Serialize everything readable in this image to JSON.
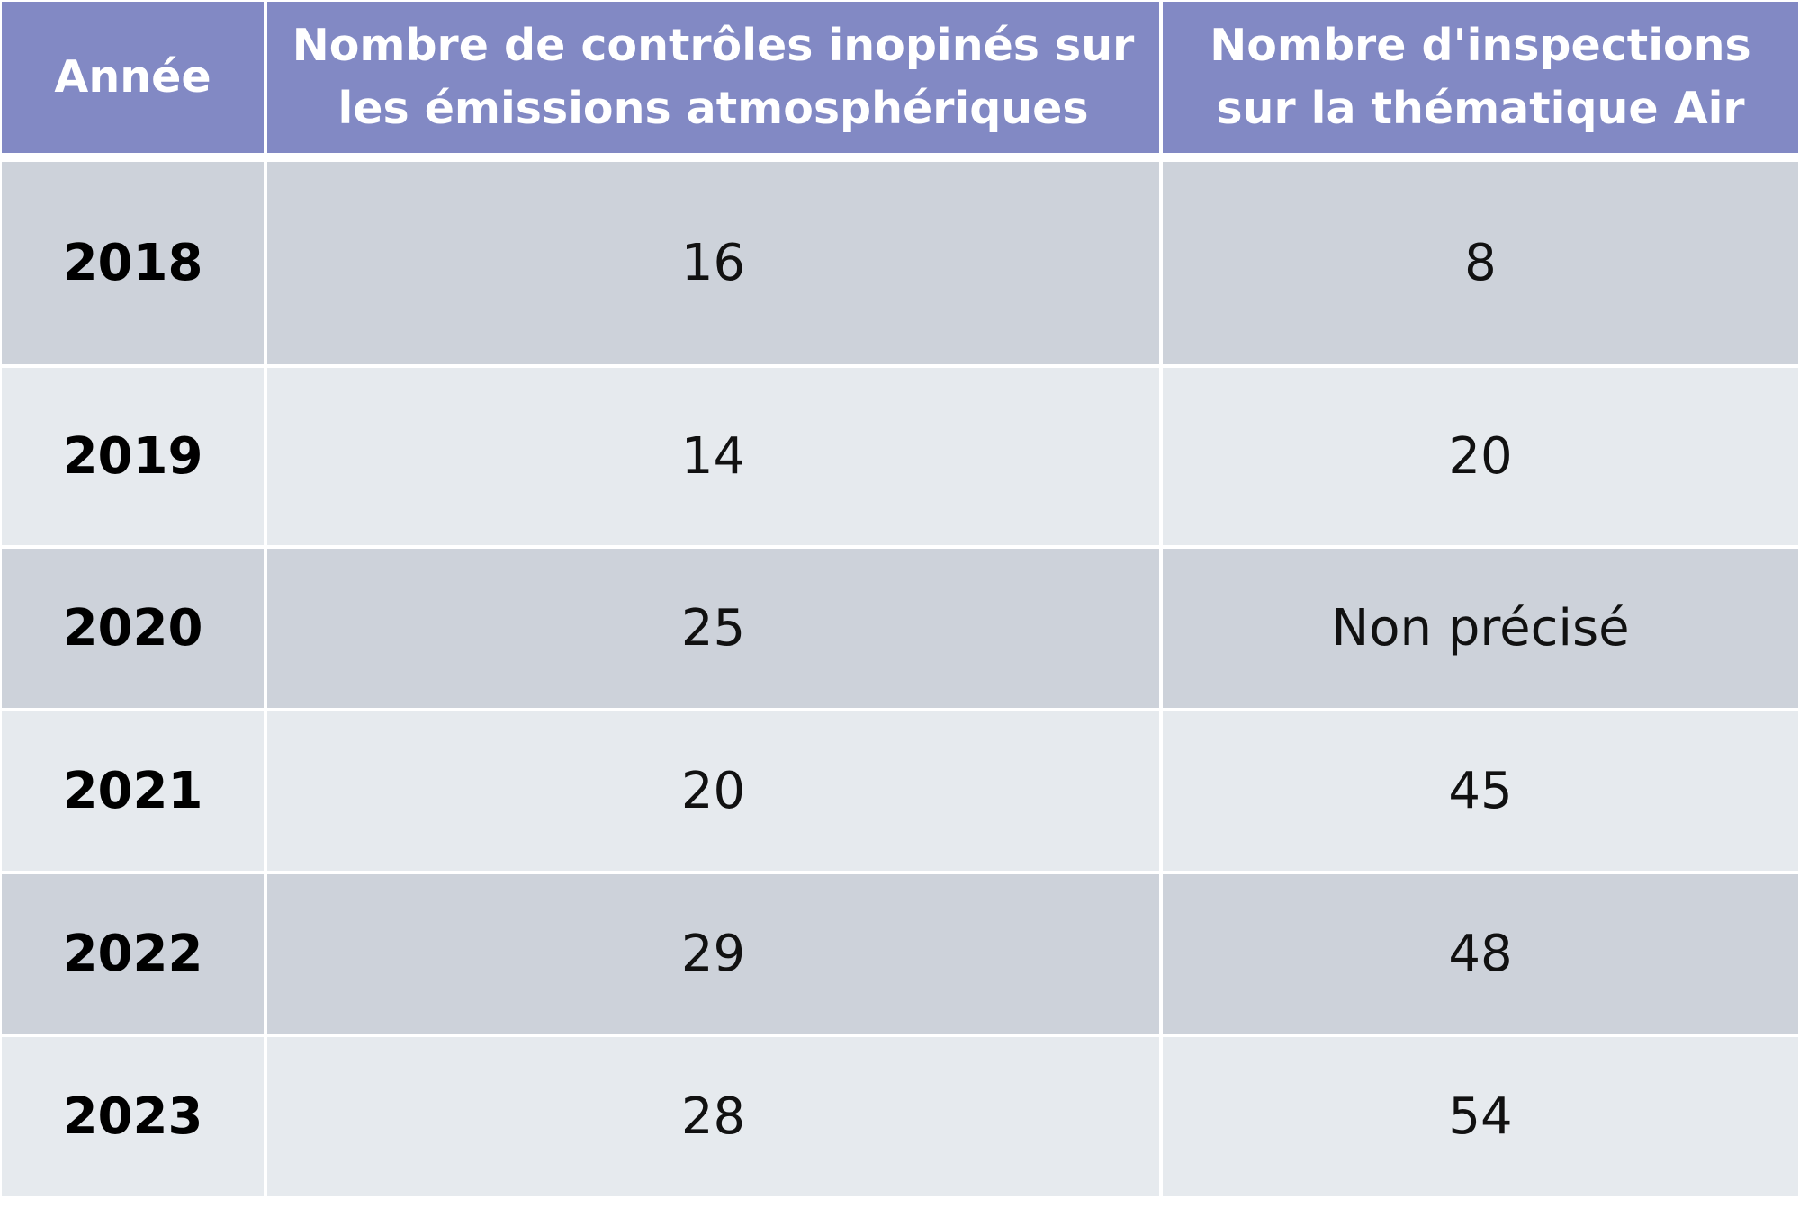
{
  "colors": {
    "header_background": "#8289c4",
    "row_dark": "#cdd2da",
    "row_light": "#e6eaee"
  },
  "table": {
    "headers": {
      "year": "Année",
      "controls": "Nombre de contrôles inopinés sur les émissions atmosphériques",
      "inspections": "Nombre d'inspections sur la thématique Air"
    },
    "rows": [
      {
        "year": "2018",
        "controls": "16",
        "inspections": "8"
      },
      {
        "year": "2019",
        "controls": "14",
        "inspections": "20"
      },
      {
        "year": "2020",
        "controls": "25",
        "inspections": "Non précisé"
      },
      {
        "year": "2021",
        "controls": "20",
        "inspections": "45"
      },
      {
        "year": "2022",
        "controls": "29",
        "inspections": "48"
      },
      {
        "year": "2023",
        "controls": "28",
        "inspections": "54"
      }
    ]
  }
}
